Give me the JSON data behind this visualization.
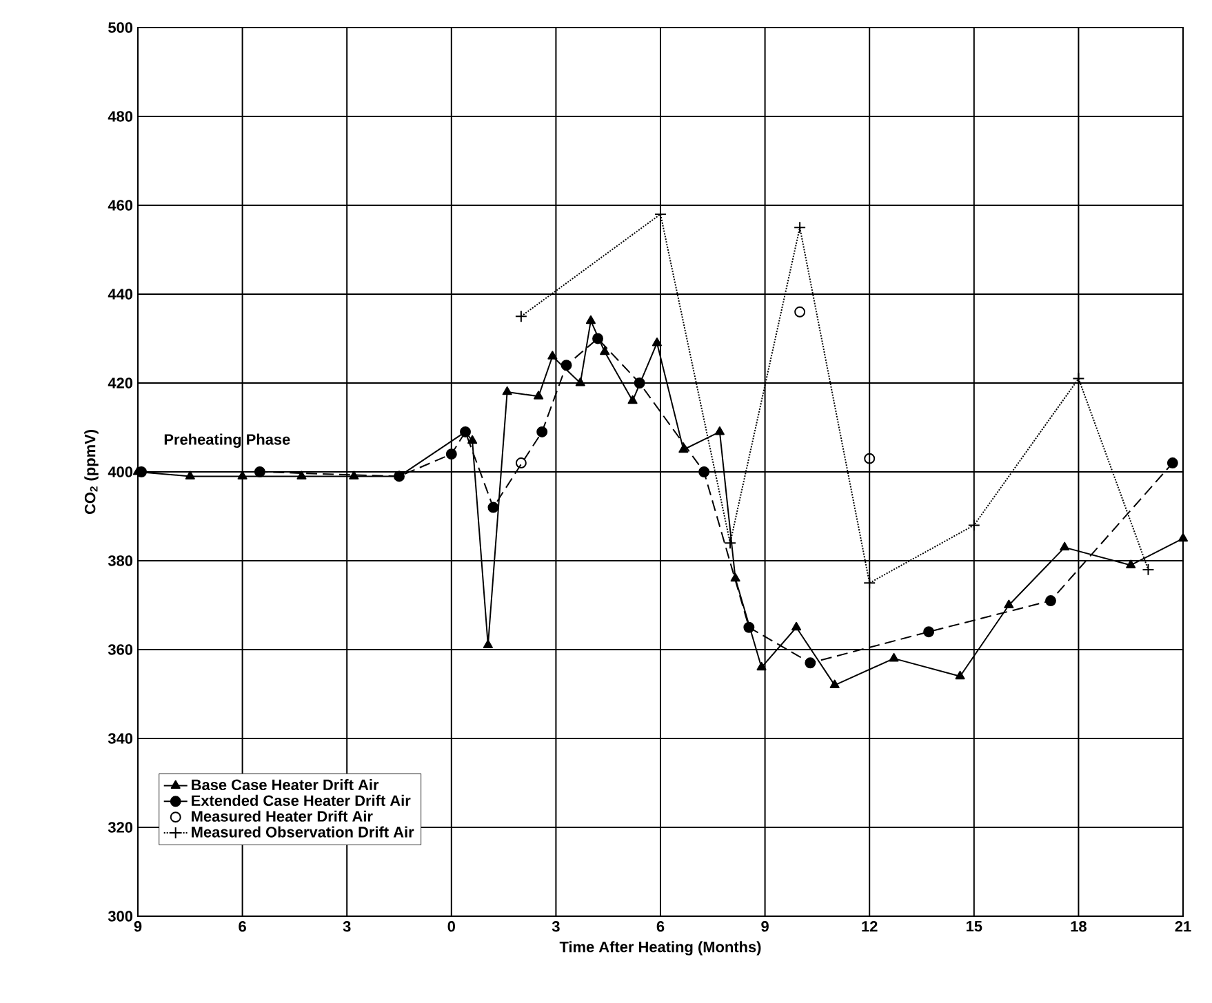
{
  "chart_data": {
    "type": "line",
    "xlabel": "Time After Heating (Months)",
    "ylabel": "CO$_{2}$ (ppmV)",
    "xlim": [
      -9,
      21
    ],
    "xticks": [
      {
        "value": -9,
        "label": "9"
      },
      {
        "value": -6,
        "label": "6"
      },
      {
        "value": -3,
        "label": "3"
      },
      0,
      3,
      6,
      9,
      12,
      15,
      18,
      21
    ],
    "ylim": [
      300,
      500
    ],
    "yticks": [
      300,
      320,
      340,
      360,
      380,
      400,
      420,
      440,
      460,
      480,
      500
    ],
    "grid": true,
    "legend": "bottom left",
    "annotations": [
      "Preheating Phase"
    ],
    "series": [
      {
        "name": "Base Case Heater Drift Air",
        "color": "#000000",
        "marker": "triangle",
        "line_style": "solid",
        "x": [
          -9,
          -7.5,
          -6,
          -4.3,
          -2.8,
          -1.5,
          0.4,
          0.6,
          1.05,
          1.6,
          2.5,
          2.9,
          3.7,
          4,
          4.4,
          5.2,
          5.9,
          6.66,
          7.7,
          8.15,
          8.9,
          9.9,
          11,
          12.7,
          14.6,
          16,
          17.6,
          19.5,
          21
        ],
        "values": [
          400,
          399,
          399,
          399,
          399,
          399,
          409,
          407,
          361,
          418,
          417,
          426,
          420,
          434,
          427,
          416,
          429,
          405,
          409,
          376,
          356,
          365,
          352,
          358,
          354,
          370,
          383,
          379,
          385
        ]
      },
      {
        "name": "Extended Case Heater Drift Air",
        "color": "#000000",
        "marker": "circle",
        "line_style": "dashed",
        "x": [
          -8.9,
          -5.5,
          -1.5,
          0,
          0.4,
          1.2,
          2.6,
          3.3,
          4.2,
          5.4,
          7.25,
          8.54,
          10.3,
          13.7,
          17.2,
          20.7
        ],
        "values": [
          400,
          400,
          399,
          404,
          409,
          392,
          409,
          424,
          430,
          420,
          400,
          365,
          357,
          364,
          371,
          402
        ]
      },
      {
        "name": "Measured Heater Drift Air",
        "color": "#000000",
        "type": "scatter",
        "marker": "open circle",
        "x": [
          2,
          10,
          12
        ],
        "values": [
          402,
          436,
          403
        ]
      },
      {
        "name": "Measured Observation Drift Air",
        "color": "#000000",
        "marker": "cross",
        "line_style": "dotted",
        "x": [
          2,
          6,
          8,
          10,
          12,
          15,
          18,
          20
        ],
        "values": [
          435,
          458,
          384,
          455,
          375,
          388,
          421,
          378
        ]
      }
    ]
  }
}
